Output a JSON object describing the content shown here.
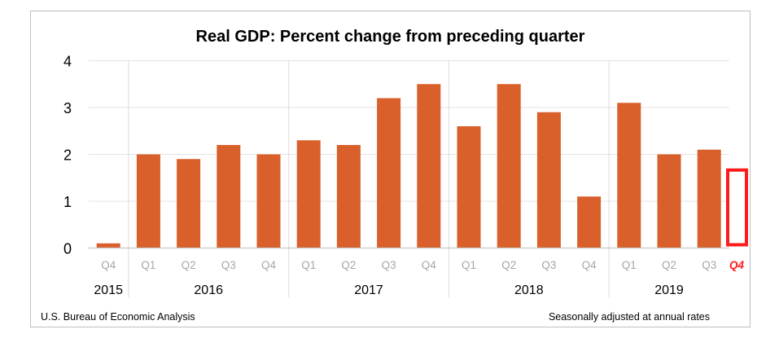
{
  "chart_data": {
    "type": "bar",
    "title": "Real GDP:  Percent change from preceding quarter",
    "categories": [
      "Q4",
      "Q1",
      "Q2",
      "Q3",
      "Q4",
      "Q1",
      "Q2",
      "Q3",
      "Q4",
      "Q1",
      "Q2",
      "Q3",
      "Q4",
      "Q1",
      "Q2",
      "Q3"
    ],
    "years": [
      {
        "label": "2015",
        "start": 0,
        "count": 1
      },
      {
        "label": "2016",
        "start": 1,
        "count": 4
      },
      {
        "label": "2017",
        "start": 5,
        "count": 4
      },
      {
        "label": "2018",
        "start": 9,
        "count": 4
      },
      {
        "label": "2019",
        "start": 13,
        "count": 3
      }
    ],
    "values": [
      0.1,
      2.0,
      1.9,
      2.2,
      2.0,
      2.3,
      2.2,
      3.2,
      3.5,
      2.6,
      3.5,
      2.9,
      1.1,
      3.1,
      2.0,
      2.1
    ],
    "highlight": {
      "label": "Q4",
      "outline_level": 1.7,
      "color": "#ff1a1a"
    },
    "ylim": [
      0,
      4
    ],
    "yticks": [
      0,
      1,
      2,
      3,
      4
    ],
    "grid": true,
    "bar_color": "#d9602b",
    "xlabel": "",
    "ylabel": ""
  },
  "footer": {
    "source": "U.S. Bureau of Economic Analysis",
    "note": "Seasonally adjusted at annual rates"
  }
}
